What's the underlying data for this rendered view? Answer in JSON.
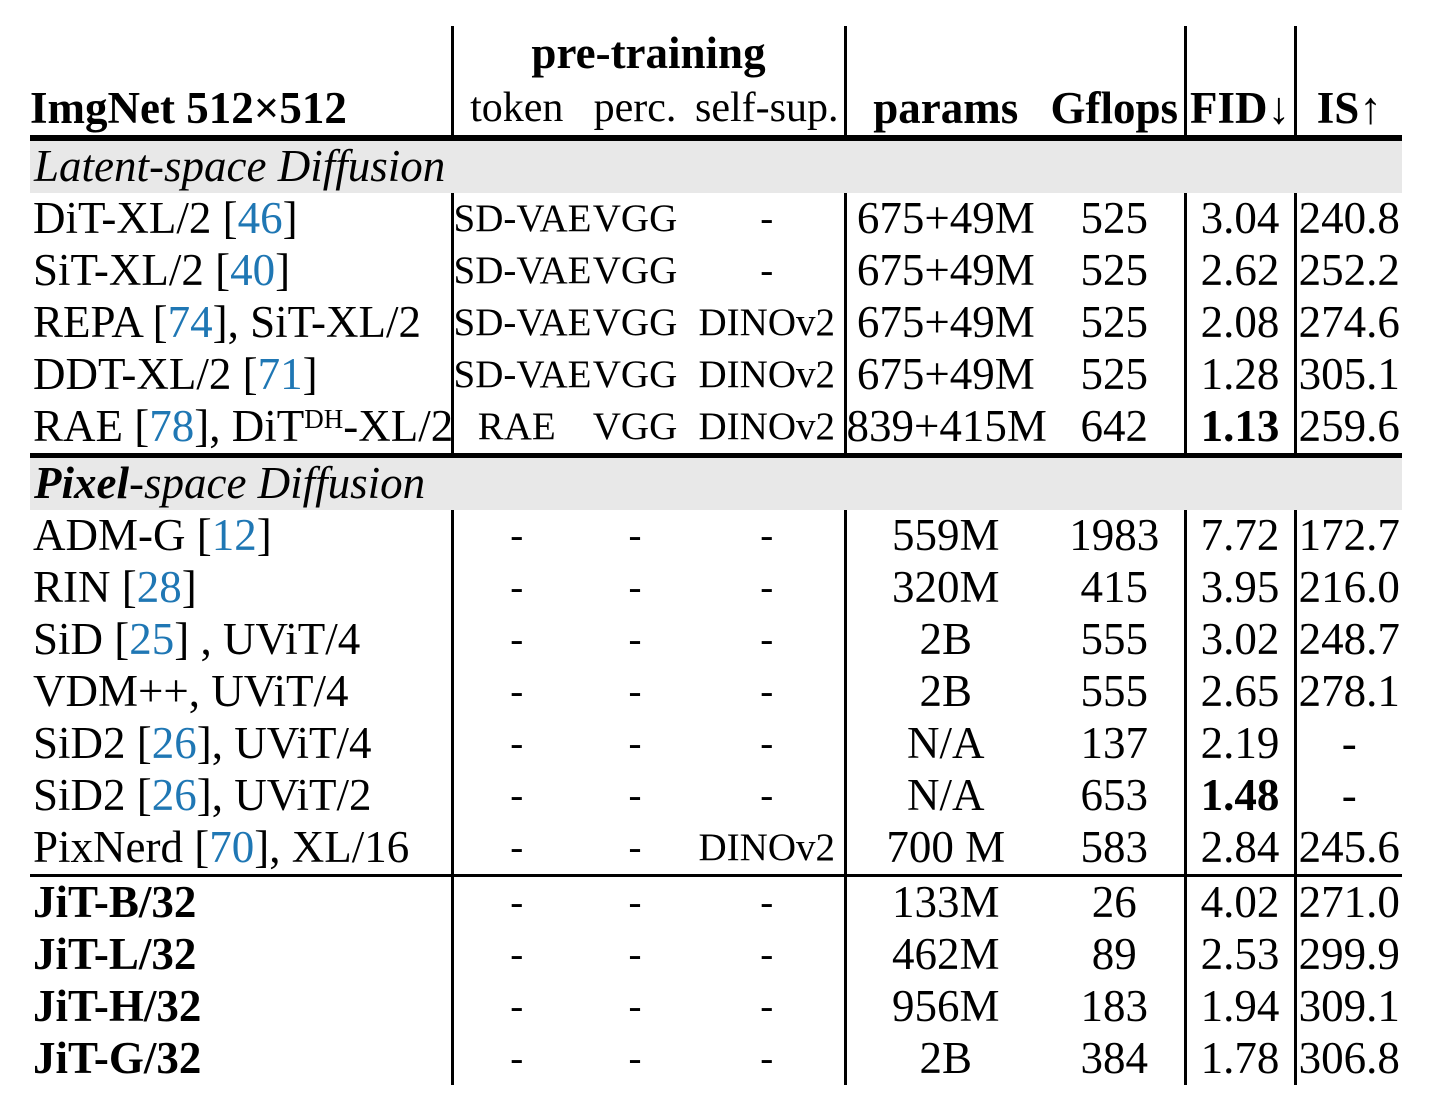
{
  "colors": {
    "citation_blue": "#1f77b4",
    "section_band_gray": "#e8e8e8",
    "rule_black": "#000000"
  },
  "header": {
    "corner": "ImgNet 512×512",
    "group": "pre-training",
    "sub": [
      "token",
      "perc.",
      "self-sup."
    ],
    "metrics": [
      "params",
      "Gflops",
      "FID↓",
      "IS↑"
    ]
  },
  "sections": [
    {
      "label": [
        {
          "text": "Latent",
          "bold": false
        },
        {
          "text": "-space Diffusion",
          "bold": false
        }
      ],
      "rows": [
        {
          "name": [
            {
              "text": "DiT-XL/2 ["
            },
            {
              "text": "46",
              "cite": true
            },
            {
              "text": "]"
            }
          ],
          "cells": {
            "token": "SD-VAE",
            "perc": "VGG",
            "selfsup": "-",
            "params": "675+49M",
            "gflops": "525",
            "fid": "3.04",
            "is": "240.8"
          }
        },
        {
          "name": [
            {
              "text": "SiT-XL/2 ["
            },
            {
              "text": "40",
              "cite": true
            },
            {
              "text": "]"
            }
          ],
          "cells": {
            "token": "SD-VAE",
            "perc": "VGG",
            "selfsup": "-",
            "params": "675+49M",
            "gflops": "525",
            "fid": "2.62",
            "is": "252.2"
          }
        },
        {
          "name": [
            {
              "text": "REPA ["
            },
            {
              "text": "74",
              "cite": true
            },
            {
              "text": "], SiT-XL/2"
            }
          ],
          "cells": {
            "token": "SD-VAE",
            "perc": "VGG",
            "selfsup": "DINOv2",
            "params": "675+49M",
            "gflops": "525",
            "fid": "2.08",
            "is": "274.6"
          }
        },
        {
          "name": [
            {
              "text": "DDT-XL/2 ["
            },
            {
              "text": "71",
              "cite": true
            },
            {
              "text": "]"
            }
          ],
          "cells": {
            "token": "SD-VAE",
            "perc": "VGG",
            "selfsup": "DINOv2",
            "params": "675+49M",
            "gflops": "525",
            "fid": "1.28",
            "is": "305.1"
          }
        },
        {
          "name": [
            {
              "text": "RAE ["
            },
            {
              "text": "78",
              "cite": true
            },
            {
              "text": "], DiT"
            },
            {
              "text": "DH",
              "sup": true
            },
            {
              "text": "-XL/2"
            }
          ],
          "cells": {
            "token": "RAE",
            "perc": "VGG",
            "selfsup": "DINOv2",
            "params": "839+415M",
            "gflops": "642",
            "fid": {
              "text": "1.13",
              "bold": true
            },
            "is": "259.6"
          }
        }
      ]
    },
    {
      "label": [
        {
          "text": "Pixel",
          "bold": true
        },
        {
          "text": "-space Diffusion",
          "bold": false
        }
      ],
      "rows": [
        {
          "name": [
            {
              "text": "ADM-G ["
            },
            {
              "text": "12",
              "cite": true
            },
            {
              "text": "]"
            }
          ],
          "cells": {
            "token": "-",
            "perc": "-",
            "selfsup": "-",
            "params": "559M",
            "gflops": "1983",
            "fid": "7.72",
            "is": "172.7"
          }
        },
        {
          "name": [
            {
              "text": "RIN ["
            },
            {
              "text": "28",
              "cite": true
            },
            {
              "text": "]"
            }
          ],
          "cells": {
            "token": "-",
            "perc": "-",
            "selfsup": "-",
            "params": "320M",
            "gflops": "415",
            "fid": "3.95",
            "is": "216.0"
          }
        },
        {
          "name": [
            {
              "text": "SiD ["
            },
            {
              "text": "25",
              "cite": true
            },
            {
              "text": "] , UViT/4"
            }
          ],
          "cells": {
            "token": "-",
            "perc": "-",
            "selfsup": "-",
            "params": "2B",
            "gflops": "555",
            "fid": "3.02",
            "is": "248.7"
          }
        },
        {
          "name": [
            {
              "text": "VDM++, UViT/4"
            }
          ],
          "cells": {
            "token": "-",
            "perc": "-",
            "selfsup": "-",
            "params": "2B",
            "gflops": "555",
            "fid": "2.65",
            "is": "278.1"
          }
        },
        {
          "name": [
            {
              "text": "SiD2 ["
            },
            {
              "text": "26",
              "cite": true
            },
            {
              "text": "], UViT/4"
            }
          ],
          "cells": {
            "token": "-",
            "perc": "-",
            "selfsup": "-",
            "params": "N/A",
            "gflops": "137",
            "fid": "2.19",
            "is": "-"
          }
        },
        {
          "name": [
            {
              "text": "SiD2 ["
            },
            {
              "text": "26",
              "cite": true
            },
            {
              "text": "], UViT/2"
            }
          ],
          "cells": {
            "token": "-",
            "perc": "-",
            "selfsup": "-",
            "params": "N/A",
            "gflops": "653",
            "fid": {
              "text": "1.48",
              "bold": true
            },
            "is": "-"
          }
        },
        {
          "name": [
            {
              "text": "PixNerd ["
            },
            {
              "text": "70",
              "cite": true
            },
            {
              "text": "], XL/16"
            }
          ],
          "cells": {
            "token": "-",
            "perc": "-",
            "selfsup": "DINOv2",
            "params": "700 M",
            "gflops": "583",
            "fid": "2.84",
            "is": "245.6"
          }
        }
      ]
    },
    {
      "label": null,
      "rows": [
        {
          "name": [
            {
              "text": "JiT-B/32"
            }
          ],
          "name_bold": true,
          "cells": {
            "token": "-",
            "perc": "-",
            "selfsup": "-",
            "params": "133M",
            "gflops": "26",
            "fid": "4.02",
            "is": "271.0"
          }
        },
        {
          "name": [
            {
              "text": "JiT-L/32"
            }
          ],
          "name_bold": true,
          "cells": {
            "token": "-",
            "perc": "-",
            "selfsup": "-",
            "params": "462M",
            "gflops": "89",
            "fid": "2.53",
            "is": "299.9"
          }
        },
        {
          "name": [
            {
              "text": "JiT-H/32"
            }
          ],
          "name_bold": true,
          "cells": {
            "token": "-",
            "perc": "-",
            "selfsup": "-",
            "params": "956M",
            "gflops": "183",
            "fid": "1.94",
            "is": "309.1"
          }
        },
        {
          "name": [
            {
              "text": "JiT-G/32"
            }
          ],
          "name_bold": true,
          "cells": {
            "token": "-",
            "perc": "-",
            "selfsup": "-",
            "params": "2B",
            "gflops": "384",
            "fid": "1.78",
            "is": "306.8"
          }
        }
      ]
    }
  ]
}
